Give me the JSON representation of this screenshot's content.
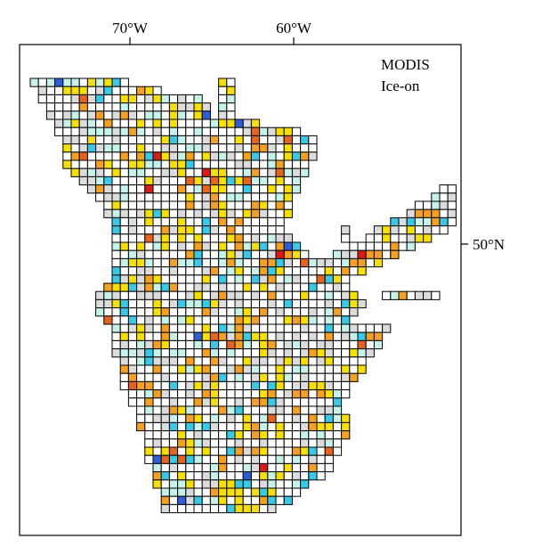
{
  "map": {
    "title": "MODIS",
    "subtitle": "Ice-on",
    "longitude_labels": [
      "70°W",
      "60°W"
    ],
    "latitude_labels": [
      "50°N"
    ]
  },
  "legend_colors": {
    "no_data": "#ffffff",
    "neutral": "#dcdcdc",
    "light_cyan": "#c6f2ec",
    "cyan": "#38c8e8",
    "blue": "#2f5fd8",
    "yellow": "#f7e000",
    "orange": "#f5a020",
    "dark_orange": "#e8641e",
    "red": "#dd1a1a"
  }
}
